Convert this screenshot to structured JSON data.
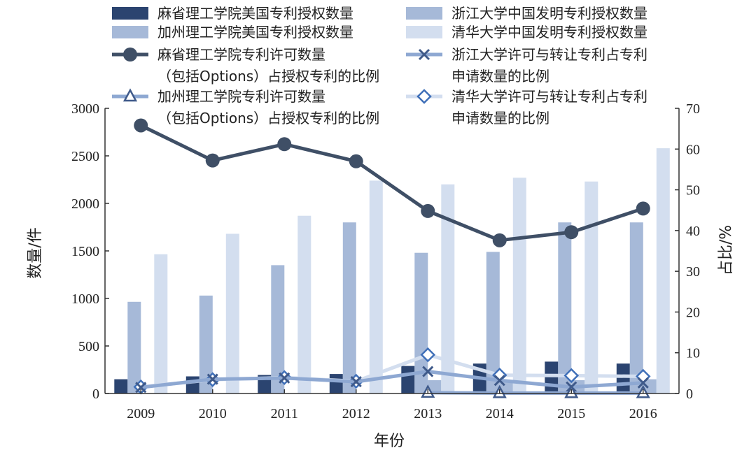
{
  "chart_data": {
    "type": "bar",
    "categories": [
      "2009",
      "2010",
      "2011",
      "2012",
      "2013",
      "2014",
      "2015",
      "2016"
    ],
    "xlabel": "年份",
    "ylabel_left": "数量/件",
    "ylabel_right": "占比/%",
    "ylim_left": [
      0,
      3000
    ],
    "ylim_right": [
      0,
      70
    ],
    "yticks_left": [
      "0",
      "500",
      "1000",
      "1500",
      "2000",
      "2500",
      "3000"
    ],
    "yticks_right": [
      "0",
      "10",
      "20",
      "30",
      "40",
      "50",
      "60",
      "70"
    ],
    "grid": false,
    "legend_position": "top",
    "bar_series": [
      {
        "name": "麻省理工学院美国专利授权数量",
        "color": "#2b4470",
        "values": [
          150,
          180,
          195,
          205,
          290,
          315,
          335,
          315
        ]
      },
      {
        "name": "加州理工学院美国专利授权数量",
        "color": "#a6b9d8",
        "values": [
          965,
          1030,
          1350,
          1800,
          1480,
          1490,
          1800,
          1800
        ]
      },
      {
        "name": "浙江大学中国发明专利授权数量",
        "color": "#a6b9d8",
        "values": [
          0,
          0,
          0,
          0,
          140,
          140,
          140,
          150
        ]
      },
      {
        "name": "清华大学中国发明专利授权数量",
        "color": "#d3deef",
        "values": [
          1465,
          1680,
          1870,
          2240,
          2200,
          2270,
          2230,
          2580
        ]
      }
    ],
    "line_series": [
      {
        "name_lines": [
          "麻省理工学院专利许可数量",
          "（包括Options）占授权专利的比例"
        ],
        "color": "#3f4f66",
        "marker": "circle",
        "values": [
          65.8,
          57.2,
          61.2,
          57.0,
          44.8,
          37.6,
          39.6,
          45.4
        ]
      },
      {
        "name_lines": [
          "浙江大学许可与转让专利占专利",
          "申请数量的比例"
        ],
        "color": "#8ea8d2",
        "marker": "x",
        "values": [
          1.5,
          3.5,
          3.8,
          2.9,
          5.4,
          3.2,
          1.6,
          2.6
        ]
      },
      {
        "name_lines": [
          "加州理工学院专利许可数量",
          "（包括Options）占授权专利的比例"
        ],
        "color": "#8ea8d2",
        "marker": "triangle",
        "values": [
          null,
          null,
          null,
          null,
          0.2,
          0.1,
          0.1,
          0.1
        ]
      },
      {
        "name_lines": [
          "清华大学许可与转让专利占专利",
          "申请数量的比例"
        ],
        "color": "#d3deef",
        "marker": "diamond",
        "values": [
          1.6,
          3.4,
          3.9,
          3.0,
          9.5,
          4.5,
          4.4,
          4.2
        ]
      }
    ]
  }
}
